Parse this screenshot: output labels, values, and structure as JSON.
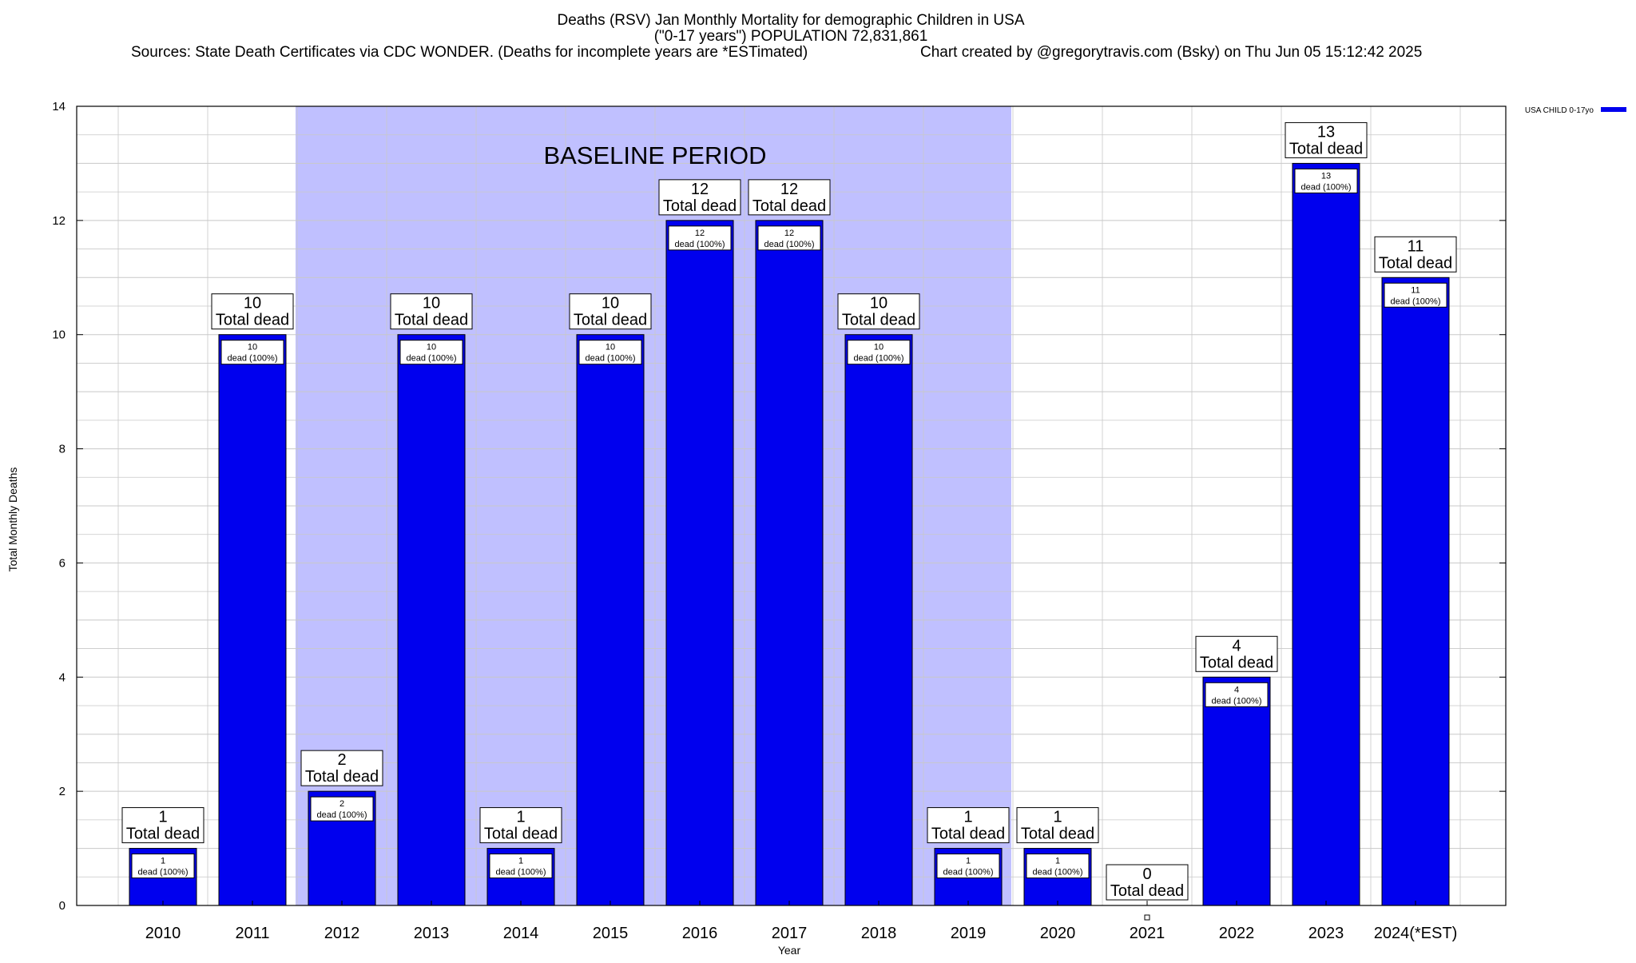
{
  "header": {
    "title_line1": "Deaths (RSV) Jan Monthly Mortality for demographic Children in USA",
    "title_line2": "(\"0-17 years\") POPULATION 72,831,861",
    "sources": "Sources: State Death Certificates via CDC WONDER. (Deaths for incomplete years are *ESTimated)",
    "credit": "Chart created by @gregorytravis.com (Bsky) on Thu Jun 05 15:12:42 2025"
  },
  "colors": {
    "bar_fill": "#0000ee",
    "baseline_band": "#c0c0ff",
    "grid": "#c8c8c8",
    "axis": "#000000"
  },
  "chart_data": {
    "type": "bar",
    "categories": [
      "2010",
      "2011",
      "2012",
      "2013",
      "2014",
      "2015",
      "2016",
      "2017",
      "2018",
      "2019",
      "2020",
      "2021",
      "2022",
      "2023",
      "2024(*EST)"
    ],
    "series": [
      {
        "name": "USA CHILD 0-17yo",
        "values": [
          1,
          10,
          2,
          10,
          1,
          10,
          12,
          12,
          10,
          1,
          1,
          0,
          4,
          13,
          11
        ]
      }
    ],
    "xlabel": "Year",
    "ylabel": "Total Monthly Deaths",
    "ylim": [
      0,
      14
    ],
    "yticks": [
      0,
      2,
      4,
      6,
      8,
      10,
      12,
      14
    ],
    "grid": true,
    "legend_position": "top-right",
    "total_label_suffix": "Total dead",
    "inner_label_suffix": "dead (100%)",
    "annotation": {
      "text": "BASELINE PERIOD",
      "from_category": "2012",
      "to_category": "2019"
    }
  }
}
